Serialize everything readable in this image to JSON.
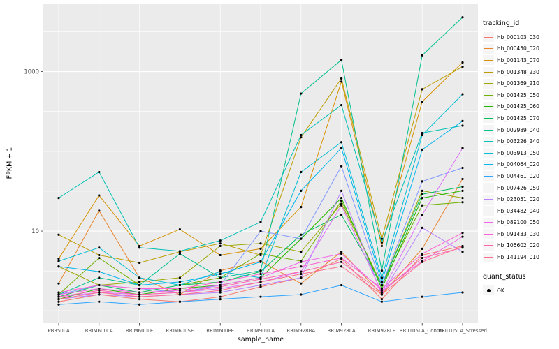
{
  "chart": {
    "x_axis_title": "sample_name",
    "y_axis_title": "FPKM + 1"
  },
  "chart_data": {
    "type": "line",
    "x_label": "sample_name",
    "y_label": "FPKM + 1",
    "y_scale": "log10",
    "y_domain": [
      0.7,
      7000
    ],
    "y_ticks": [
      10,
      1000
    ],
    "grid": true,
    "legend_position": "right",
    "panel_background": "#EBEBEB",
    "series_legend_title": "tracking_id",
    "quant_legend_title": "quant_status",
    "quant_status": {
      "label": "OK",
      "marker_color": "#000000"
    },
    "categories": [
      "PB350LA",
      "RRIM600LA",
      "RRIM600LE",
      "RRIM600SE",
      "RRIM600PE",
      "RRIM901LA",
      "RRIM928BA",
      "RRIM928LA",
      "RRIM928LE",
      "RRII105LA_Control",
      "RRII105LA_Stressed"
    ],
    "series": [
      {
        "name": "Hb_000103_030",
        "color": "#F8766D",
        "values": [
          1.3,
          1.6,
          1.4,
          1.3,
          1.5,
          2.0,
          2.6,
          4.5,
          1.4,
          5,
          6.5
        ]
      },
      {
        "name": "Hb_000450_020",
        "color": "#E9842C",
        "values": [
          2.2,
          18,
          2.6,
          1.6,
          3.2,
          4.2,
          2.2,
          5.5,
          1.6,
          6,
          45
        ]
      },
      {
        "name": "Hb_001143_070",
        "color": "#D69100",
        "values": [
          4.5,
          28,
          6.5,
          10.5,
          5,
          6,
          20,
          750,
          6.5,
          420,
          1300
        ]
      },
      {
        "name": "Hb_001348_230",
        "color": "#BC9D00",
        "values": [
          9,
          5,
          4,
          5.5,
          7,
          5,
          150,
          820,
          8,
          600,
          1150
        ]
      },
      {
        "name": "Hb_001369_210",
        "color": "#9CA700",
        "values": [
          3.6,
          2.1,
          2.3,
          2.6,
          6.5,
          7,
          5.5,
          22,
          2.1,
          32,
          26
        ]
      },
      {
        "name": "Hb_001425_050",
        "color": "#6FB000",
        "values": [
          1.6,
          4.6,
          2.1,
          2.1,
          2.6,
          5.2,
          4.2,
          24,
          2.1,
          21,
          23
        ]
      },
      {
        "name": "Hb_001425_060",
        "color": "#24B700",
        "values": [
          1.4,
          1.9,
          1.6,
          1.9,
          2.1,
          2.6,
          8,
          26,
          1.9,
          26,
          32
        ]
      },
      {
        "name": "Hb_001425_070",
        "color": "#00BD5C",
        "values": [
          1.5,
          2.1,
          1.7,
          2.1,
          2.3,
          3.1,
          9,
          16,
          2.1,
          29,
          36
        ]
      },
      {
        "name": "Hb_002989_040",
        "color": "#00C08E",
        "values": [
          1.6,
          2.6,
          2.1,
          5.2,
          2.6,
          3.2,
          530,
          1400,
          3.2,
          1600,
          4800
        ]
      },
      {
        "name": "Hb_003226_240",
        "color": "#00C0B4",
        "values": [
          26,
          55,
          6.2,
          5.6,
          7.6,
          13,
          160,
          380,
          7.2,
          170,
          210
        ]
      },
      {
        "name": "Hb_003913_050",
        "color": "#00BDD4",
        "values": [
          4.2,
          6.2,
          2.6,
          2.1,
          3.1,
          2.6,
          55,
          130,
          2.6,
          160,
          520
        ]
      },
      {
        "name": "Hb_004064_020",
        "color": "#00B5EE",
        "values": [
          3.6,
          3.1,
          2.1,
          2.3,
          2.9,
          4.1,
          32,
          110,
          2.3,
          105,
          240
        ]
      },
      {
        "name": "Hb_004461_020",
        "color": "#2FA5FF",
        "values": [
          1.2,
          1.3,
          1.2,
          1.3,
          1.4,
          1.5,
          1.6,
          2.1,
          1.3,
          1.5,
          1.7
        ]
      },
      {
        "name": "Hb_007426_050",
        "color": "#7E96FF",
        "values": [
          1.6,
          2.1,
          1.9,
          1.7,
          2.1,
          10,
          8,
          65,
          2.1,
          42,
          62
        ]
      },
      {
        "name": "Hb_023051_020",
        "color": "#B983FF",
        "values": [
          1.4,
          1.6,
          1.5,
          1.6,
          1.7,
          2.1,
          2.6,
          32,
          1.6,
          11,
          5.5
        ]
      },
      {
        "name": "Hb_034482_040",
        "color": "#DC71FA",
        "values": [
          1.5,
          1.7,
          1.6,
          1.7,
          1.9,
          2.3,
          3.1,
          21,
          1.7,
          16,
          110
        ]
      },
      {
        "name": "Hb_089100_050",
        "color": "#F265E8",
        "values": [
          1.6,
          1.9,
          1.7,
          1.8,
          2.1,
          2.6,
          4.1,
          5.2,
          1.8,
          4.2,
          8.5
        ]
      },
      {
        "name": "Hb_091433_030",
        "color": "#FD61D3",
        "values": [
          1.7,
          2.1,
          1.9,
          1.9,
          2.3,
          2.9,
          3.6,
          4.6,
          1.9,
          5.2,
          9.5
        ]
      },
      {
        "name": "Hb_105602_020",
        "color": "#FF65AC",
        "values": [
          1.5,
          1.8,
          1.6,
          1.7,
          2.0,
          2.5,
          3.1,
          4.1,
          1.7,
          4.6,
          6.2
        ]
      },
      {
        "name": "Hb_141194_010",
        "color": "#FF6C90",
        "values": [
          1.4,
          1.7,
          1.5,
          1.6,
          1.8,
          2.3,
          2.9,
          3.6,
          1.6,
          4.1,
          6.4
        ]
      }
    ]
  }
}
